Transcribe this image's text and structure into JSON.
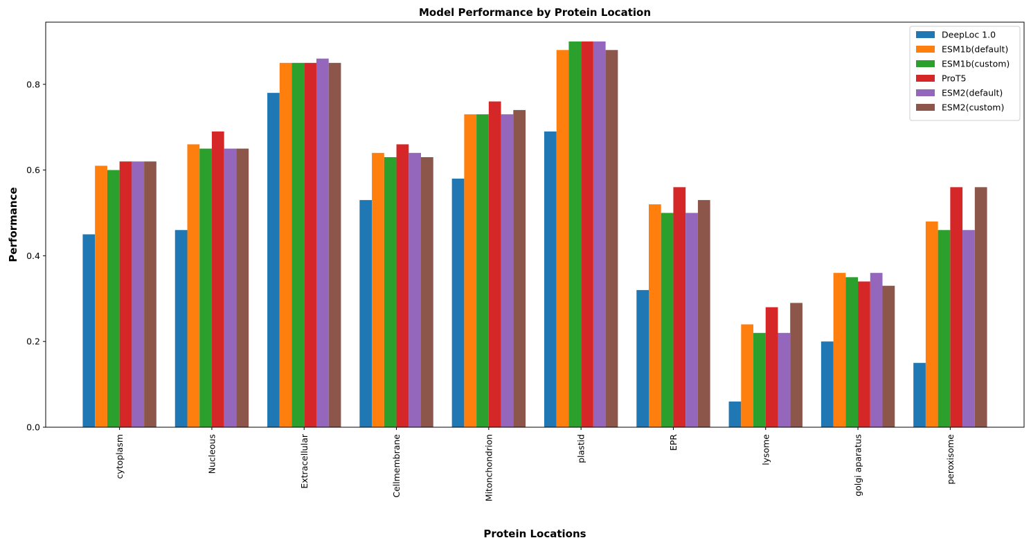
{
  "chart_data": {
    "type": "bar",
    "title": "Model Performance by Protein Location",
    "xlabel": "Protein Locations",
    "ylabel": "Performance",
    "ylim": [
      0,
      0.945
    ],
    "yticks": [
      0.0,
      0.2,
      0.4,
      0.6,
      0.8
    ],
    "ytick_labels": [
      "0.0",
      "0.2",
      "0.4",
      "0.6",
      "0.8"
    ],
    "grid": false,
    "legend_position": "top-right",
    "categories": [
      "cytoplasm",
      "Nucleous",
      "Extracellular",
      "Cellmembrane",
      "Mitonchondrion",
      "plastid",
      "EPR",
      "lysome",
      "golgi aparatus",
      "peroxisome"
    ],
    "series": [
      {
        "name": "DeepLoc 1.0",
        "color": "#1f77b4",
        "values": [
          0.45,
          0.46,
          0.78,
          0.53,
          0.58,
          0.69,
          0.32,
          0.06,
          0.2,
          0.15
        ]
      },
      {
        "name": "ESM1b(default)",
        "color": "#ff7f0e",
        "values": [
          0.61,
          0.66,
          0.85,
          0.64,
          0.73,
          0.88,
          0.52,
          0.24,
          0.36,
          0.48
        ]
      },
      {
        "name": "ESM1b(custom)",
        "color": "#2ca02c",
        "values": [
          0.6,
          0.65,
          0.85,
          0.63,
          0.73,
          0.9,
          0.5,
          0.22,
          0.35,
          0.46
        ]
      },
      {
        "name": "ProT5",
        "color": "#d62728",
        "values": [
          0.62,
          0.69,
          0.85,
          0.66,
          0.76,
          0.9,
          0.56,
          0.28,
          0.34,
          0.56
        ]
      },
      {
        "name": "ESM2(default)",
        "color": "#9467bd",
        "values": [
          0.62,
          0.65,
          0.86,
          0.64,
          0.73,
          0.9,
          0.5,
          0.22,
          0.36,
          0.46
        ]
      },
      {
        "name": "ESM2(custom)",
        "color": "#8c564b",
        "values": [
          0.62,
          0.65,
          0.85,
          0.63,
          0.74,
          0.88,
          0.53,
          0.29,
          0.33,
          0.56
        ]
      }
    ]
  }
}
